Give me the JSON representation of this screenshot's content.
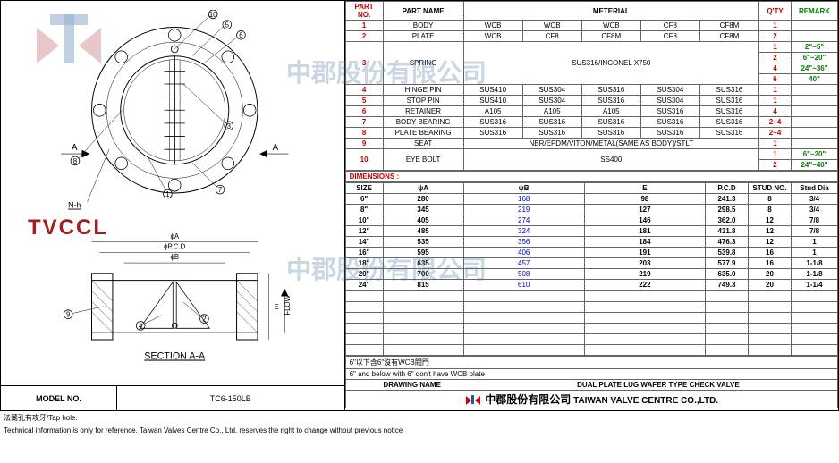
{
  "model": {
    "label": "MODEL NO.",
    "value": "TC6-150LB"
  },
  "parts": {
    "headers": [
      "PART NO.",
      "PART NAME",
      "METERIAL",
      "Q'TY",
      "REMARK"
    ],
    "rows": [
      {
        "no": "1",
        "name": "BODY",
        "mats": [
          "WCB",
          "WCB",
          "WCB",
          "CF8",
          "CF8M"
        ],
        "qtys": [
          {
            "q": "1",
            "r": ""
          }
        ]
      },
      {
        "no": "2",
        "name": "PLATE",
        "mats": [
          "WCB",
          "CF8",
          "CF8M",
          "CF8",
          "CF8M"
        ],
        "qtys": [
          {
            "q": "2",
            "r": ""
          }
        ]
      },
      {
        "no": "3",
        "name": "SPRING",
        "mats_merged": "SUS316/INCONEL X750",
        "qtys": [
          {
            "q": "1",
            "r": "2\"~5\""
          },
          {
            "q": "2",
            "r": "6\"~20\""
          },
          {
            "q": "4",
            "r": "24\"~36\""
          },
          {
            "q": "6",
            "r": "40\""
          }
        ]
      },
      {
        "no": "4",
        "name": "HINGE PIN",
        "mats": [
          "SUS410",
          "SUS304",
          "SUS316",
          "SUS304",
          "SUS316"
        ],
        "qtys": [
          {
            "q": "1",
            "r": ""
          }
        ]
      },
      {
        "no": "5",
        "name": "STOP PIN",
        "mats": [
          "SUS410",
          "SUS304",
          "SUS316",
          "SUS304",
          "SUS316"
        ],
        "qtys": [
          {
            "q": "1",
            "r": ""
          }
        ]
      },
      {
        "no": "6",
        "name": "RETAINER",
        "mats": [
          "A105",
          "A105",
          "A105",
          "SUS316",
          "SUS316"
        ],
        "qtys": [
          {
            "q": "4",
            "r": ""
          }
        ]
      },
      {
        "no": "7",
        "name": "BODY BEARING",
        "mats": [
          "SUS316",
          "SUS316",
          "SUS316",
          "SUS316",
          "SUS316"
        ],
        "qtys": [
          {
            "q": "2~4",
            "r": ""
          }
        ]
      },
      {
        "no": "8",
        "name": "PLATE BEARING",
        "mats": [
          "SUS316",
          "SUS316",
          "SUS316",
          "SUS316",
          "SUS316"
        ],
        "qtys": [
          {
            "q": "2~4",
            "r": ""
          }
        ]
      },
      {
        "no": "9",
        "name": "SEAT",
        "mats_merged": "NBR/EPDM/VITON/METAL(SAME AS BODY)/STLT",
        "qtys": [
          {
            "q": "1",
            "r": ""
          }
        ]
      },
      {
        "no": "10",
        "name": "EYE BOLT",
        "mats_merged": "SS400",
        "qtys": [
          {
            "q": "1",
            "r": "6\"~20\""
          },
          {
            "q": "2",
            "r": "24\"~40\""
          }
        ]
      }
    ]
  },
  "dimensions": {
    "title": "DIMENSIONS :",
    "headers": [
      "SIZE",
      "ψA",
      "ψB",
      "E",
      "P.C.D",
      "STUD NO.",
      "Stud Dia"
    ],
    "rows": [
      {
        "size": "6\"",
        "a": "280",
        "b": "168",
        "e": "98",
        "pcd": "241.3",
        "sn": "8",
        "sd": "3/4"
      },
      {
        "size": "8\"",
        "a": "345",
        "b": "219",
        "e": "127",
        "pcd": "298.5",
        "sn": "8",
        "sd": "3/4"
      },
      {
        "size": "10\"",
        "a": "405",
        "b": "274",
        "e": "146",
        "pcd": "362.0",
        "sn": "12",
        "sd": "7/8"
      },
      {
        "size": "12\"",
        "a": "485",
        "b": "324",
        "e": "181",
        "pcd": "431.8",
        "sn": "12",
        "sd": "7/8"
      },
      {
        "size": "14\"",
        "a": "535",
        "b": "356",
        "e": "184",
        "pcd": "476.3",
        "sn": "12",
        "sd": "1"
      },
      {
        "size": "16\"",
        "a": "595",
        "b": "406",
        "e": "191",
        "pcd": "539.8",
        "sn": "16",
        "sd": "1"
      },
      {
        "size": "18\"",
        "a": "635",
        "b": "457",
        "e": "203",
        "pcd": "577.9",
        "sn": "16",
        "sd": "1-1/8"
      },
      {
        "size": "20\"",
        "a": "700",
        "b": "508",
        "e": "219",
        "pcd": "635.0",
        "sn": "20",
        "sd": "1-1/8"
      },
      {
        "size": "24\"",
        "a": "815",
        "b": "610",
        "e": "222",
        "pcd": "749.3",
        "sn": "20",
        "sd": "1-1/4"
      }
    ]
  },
  "notes": {
    "cn": "6\"以下含6\"沒有WCB閥門",
    "en": "6\" and below with 6\" don't have WCB plate"
  },
  "drawing_name": {
    "label": "DRAWING NAME",
    "value": "DUAL PLATE LUG WAFER TYPE CHECK VALVE"
  },
  "company": {
    "cn": "中郡股份有限公司",
    "en": "TAIWAN VALVE CENTRE CO.,LTD."
  },
  "footnote": "法蘭孔有攻牙/Tap hole.",
  "disclaimer": "Technical information is only for reference. Taiwan Valves Centre Co., Ltd. reserves the right to change without previous notice",
  "drawing_labels": {
    "section": "SECTION A-A",
    "nh": "N-h",
    "flow": "FLOW",
    "phiB": "ϕB",
    "phiPCD": "ϕP.C.D",
    "phiA": "ϕA",
    "E": "E",
    "A": "A"
  },
  "watermarks": {
    "logo_text": "TVCCL",
    "cn_text": "中郡股份有限公司"
  },
  "colors": {
    "red": "#c00000",
    "green": "#008000",
    "blue": "#0000cc",
    "border": "#666666",
    "bg": "#ffffff"
  }
}
